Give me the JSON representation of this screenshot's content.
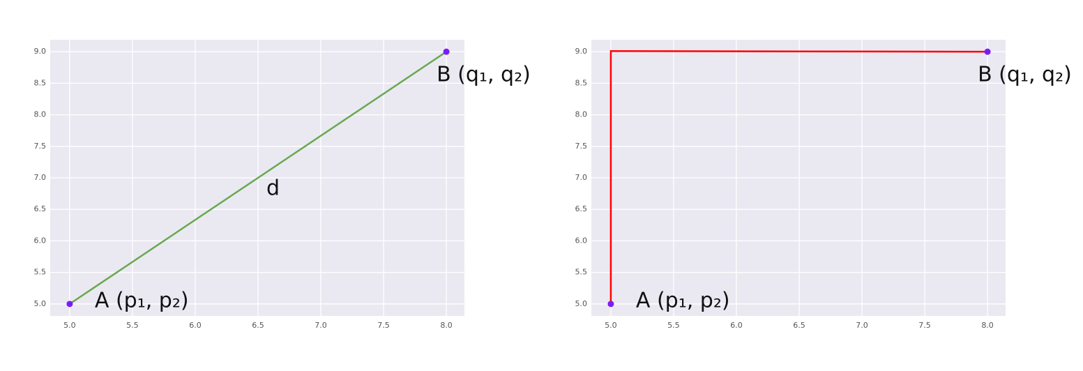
{
  "chart_data": [
    {
      "type": "scatter",
      "x": [
        5,
        8
      ],
      "values": [
        5,
        9
      ],
      "color": "#7a1cf7",
      "line": {
        "x": [
          5,
          8
        ],
        "values": [
          5,
          9
        ],
        "color": "#6aa84f"
      },
      "annotations": [
        "A (p₁, p₂)",
        "B (q₁, q₂)",
        "d"
      ],
      "xlim": [
        4.845,
        8.144
      ],
      "ylim": [
        4.81,
        9.19
      ],
      "xticks": [
        {
          "value": 5,
          "label": "5.0"
        },
        {
          "value": 5.5,
          "label": "5.5"
        },
        {
          "value": 6,
          "label": "6.0"
        },
        {
          "value": 6.5,
          "label": "6.5"
        },
        {
          "value": 7,
          "label": "7.0"
        },
        {
          "value": 7.5,
          "label": "7.5"
        },
        {
          "value": 8,
          "label": "8.0"
        }
      ],
      "yticks": [
        {
          "value": 5,
          "label": "5.0"
        },
        {
          "value": 5.5,
          "label": "5.5"
        },
        {
          "value": 6,
          "label": "6.0"
        },
        {
          "value": 6.5,
          "label": "6.5"
        },
        {
          "value": 7,
          "label": "7.0"
        },
        {
          "value": 7.5,
          "label": "7.5"
        },
        {
          "value": 8,
          "label": "8.0"
        },
        {
          "value": 8.5,
          "label": "8.5"
        },
        {
          "value": 9,
          "label": "9.0"
        }
      ],
      "grid": true
    },
    {
      "type": "scatter",
      "x": [
        5,
        8
      ],
      "values": [
        5,
        9
      ],
      "color": "#7a1cf7",
      "line": {
        "x": [
          5,
          5,
          8
        ],
        "values": [
          5,
          9.01,
          9
        ],
        "color": "#ff0000"
      },
      "annotations": [
        "A (p₁, p₂)",
        "B (q₁, q₂)"
      ],
      "xlim": [
        4.845,
        8.144
      ],
      "ylim": [
        4.81,
        9.19
      ],
      "xticks": [
        {
          "value": 5,
          "label": "5.0"
        },
        {
          "value": 5.5,
          "label": "5.5"
        },
        {
          "value": 6,
          "label": "6.0"
        },
        {
          "value": 6.5,
          "label": "6.5"
        },
        {
          "value": 7,
          "label": "7.0"
        },
        {
          "value": 7.5,
          "label": "7.5"
        },
        {
          "value": 8,
          "label": "8.0"
        }
      ],
      "yticks": [
        {
          "value": 5,
          "label": "5.0"
        },
        {
          "value": 5.5,
          "label": "5.5"
        },
        {
          "value": 6,
          "label": "6.0"
        },
        {
          "value": 6.5,
          "label": "6.5"
        },
        {
          "value": 7,
          "label": "7.0"
        },
        {
          "value": 7.5,
          "label": "7.5"
        },
        {
          "value": 8,
          "label": "8.0"
        },
        {
          "value": 8.5,
          "label": "8.5"
        },
        {
          "value": 9,
          "label": "9.0"
        }
      ],
      "grid": true
    }
  ]
}
